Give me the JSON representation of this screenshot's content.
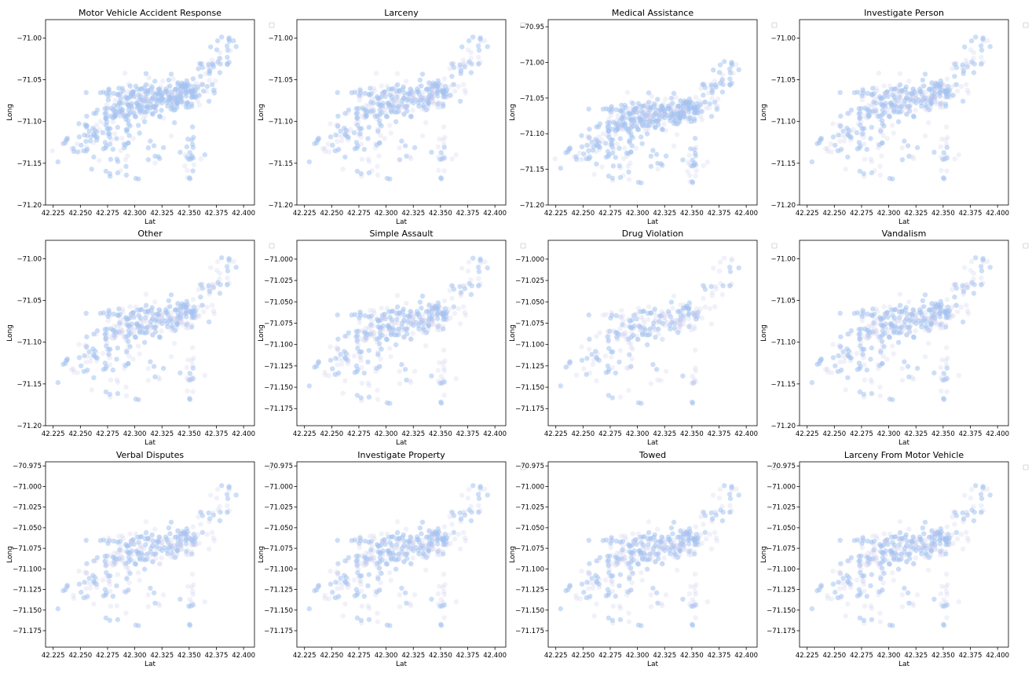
{
  "chart_data": {
    "type": "scatter",
    "figure_layout": "3x4 grid of small-multiple scatter plots",
    "point_color": "#a4c3f0",
    "point_color_faint": "#c8c8ea",
    "legend": "empty legend box at top-right outside each panel",
    "grid": false,
    "panels": [
      {
        "title": "Motor Vehicle Accident Response",
        "xlabel": "Lat",
        "ylabel": "Long",
        "xticks": [
          "42.225",
          "42.250",
          "42.275",
          "42.300",
          "42.325",
          "42.350",
          "42.375",
          "42.400"
        ],
        "yticks": [
          "−71.00",
          "−71.05",
          "−71.10",
          "−71.15",
          "−71.20"
        ],
        "xlim": [
          42.218,
          42.41
        ],
        "ylim": [
          -71.2,
          -70.978
        ],
        "density": 1.0
      },
      {
        "title": "Larceny",
        "xlabel": "Lat",
        "ylabel": "Long",
        "xticks": [
          "42.225",
          "42.250",
          "42.275",
          "42.300",
          "42.325",
          "42.350",
          "42.375",
          "42.400"
        ],
        "yticks": [
          "−71.00",
          "−71.05",
          "−71.10",
          "−71.15",
          "−71.20"
        ],
        "xlim": [
          42.218,
          42.41
        ],
        "ylim": [
          -71.2,
          -70.978
        ],
        "density": 0.6
      },
      {
        "title": "Medical Assistance",
        "xlabel": "Lat",
        "ylabel": "Long",
        "xticks": [
          "42.225",
          "42.250",
          "42.275",
          "42.300",
          "42.325",
          "42.350",
          "42.375",
          "42.400"
        ],
        "yticks": [
          "−70.95",
          "−71.00",
          "−71.05",
          "−71.10",
          "−71.15",
          "−71.20"
        ],
        "xlim": [
          42.218,
          42.41
        ],
        "ylim": [
          -71.2,
          -70.94
        ],
        "density": 0.85
      },
      {
        "title": "Investigate Person",
        "xlabel": "Lat",
        "ylabel": "Long",
        "xticks": [
          "42.225",
          "42.250",
          "42.275",
          "42.300",
          "42.325",
          "42.350",
          "42.375",
          "42.400"
        ],
        "yticks": [
          "−71.00",
          "−71.05",
          "−71.10",
          "−71.15",
          "−71.20"
        ],
        "xlim": [
          42.218,
          42.41
        ],
        "ylim": [
          -71.2,
          -70.978
        ],
        "density": 0.6
      },
      {
        "title": "Other",
        "xlabel": "Lat",
        "ylabel": "Long",
        "xticks": [
          "42.225",
          "42.250",
          "42.275",
          "42.300",
          "42.325",
          "42.350",
          "42.375",
          "42.400"
        ],
        "yticks": [
          "−71.00",
          "−71.05",
          "−71.10",
          "−71.15",
          "−71.20"
        ],
        "xlim": [
          42.218,
          42.41
        ],
        "ylim": [
          -71.2,
          -70.978
        ],
        "density": 0.55
      },
      {
        "title": "Simple Assault",
        "xlabel": "Lat",
        "ylabel": "Long",
        "xticks": [
          "42.225",
          "42.250",
          "42.275",
          "42.300",
          "42.325",
          "42.350",
          "42.375",
          "42.400"
        ],
        "yticks": [
          "−71.000",
          "−71.025",
          "−71.050",
          "−71.075",
          "−71.100",
          "−71.125",
          "−71.150",
          "−71.175"
        ],
        "xlim": [
          42.218,
          42.41
        ],
        "ylim": [
          -71.195,
          -70.978
        ],
        "density": 0.5
      },
      {
        "title": "Drug Violation",
        "xlabel": "Lat",
        "ylabel": "Long",
        "xticks": [
          "42.225",
          "42.250",
          "42.275",
          "42.300",
          "42.325",
          "42.350",
          "42.375",
          "42.400"
        ],
        "yticks": [
          "−71.000",
          "−71.025",
          "−71.050",
          "−71.075",
          "−71.100",
          "−71.125",
          "−71.150",
          "−71.175"
        ],
        "xlim": [
          42.218,
          42.41
        ],
        "ylim": [
          -71.195,
          -70.978
        ],
        "density": 0.3
      },
      {
        "title": "Vandalism",
        "xlabel": "Lat",
        "ylabel": "Long",
        "xticks": [
          "42.225",
          "42.250",
          "42.275",
          "42.300",
          "42.325",
          "42.350",
          "42.375",
          "42.400"
        ],
        "yticks": [
          "−71.00",
          "−71.05",
          "−71.10",
          "−71.15",
          "−71.20"
        ],
        "xlim": [
          42.218,
          42.41
        ],
        "ylim": [
          -71.2,
          -70.978
        ],
        "density": 0.55
      },
      {
        "title": "Verbal Disputes",
        "xlabel": "Lat",
        "ylabel": "Long",
        "xticks": [
          "42.225",
          "42.250",
          "42.275",
          "42.300",
          "42.325",
          "42.350",
          "42.375",
          "42.400"
        ],
        "yticks": [
          "−70.975",
          "−71.000",
          "−71.025",
          "−71.050",
          "−71.075",
          "−71.100",
          "−71.125",
          "−71.150",
          "−71.175"
        ],
        "xlim": [
          42.218,
          42.41
        ],
        "ylim": [
          -71.195,
          -70.97
        ],
        "density": 0.45
      },
      {
        "title": "Investigate Property",
        "xlabel": "Lat",
        "ylabel": "Long",
        "xticks": [
          "42.225",
          "42.250",
          "42.275",
          "42.300",
          "42.325",
          "42.350",
          "42.375",
          "42.400"
        ],
        "yticks": [
          "−70.975",
          "−71.000",
          "−71.025",
          "−71.050",
          "−71.075",
          "−71.100",
          "−71.125",
          "−71.150",
          "−71.175"
        ],
        "xlim": [
          42.218,
          42.41
        ],
        "ylim": [
          -71.195,
          -70.97
        ],
        "density": 0.5
      },
      {
        "title": "Towed",
        "xlabel": "Lat",
        "ylabel": "Long",
        "xticks": [
          "42.225",
          "42.250",
          "42.275",
          "42.300",
          "42.325",
          "42.350",
          "42.375",
          "42.400"
        ],
        "yticks": [
          "−70.975",
          "−71.000",
          "−71.025",
          "−71.050",
          "−71.075",
          "−71.100",
          "−71.125",
          "−71.150",
          "−71.175"
        ],
        "xlim": [
          42.218,
          42.41
        ],
        "ylim": [
          -71.195,
          -70.97
        ],
        "density": 0.5
      },
      {
        "title": "Larceny From Motor Vehicle",
        "xlabel": "Lat",
        "ylabel": "Long",
        "xticks": [
          "42.225",
          "42.250",
          "42.275",
          "42.300",
          "42.325",
          "42.350",
          "42.375",
          "42.400"
        ],
        "yticks": [
          "−70.975",
          "−71.000",
          "−71.025",
          "−71.050",
          "−71.075",
          "−71.100",
          "−71.125",
          "−71.150",
          "−71.175"
        ],
        "xlim": [
          42.218,
          42.41
        ],
        "ylim": [
          -71.195,
          -70.97
        ],
        "density": 0.5
      }
    ]
  }
}
